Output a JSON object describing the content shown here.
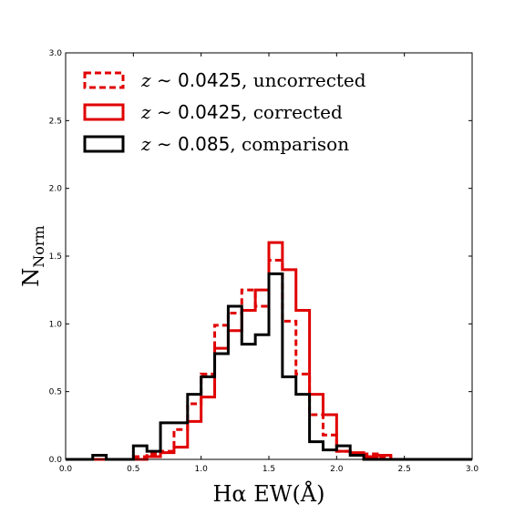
{
  "chart_data": {
    "type": "histogram",
    "xlabel": "Hα EW(Å)",
    "ylabel": "N",
    "ylabel_sub": "Norm",
    "xlim": [
      0.0,
      3.0
    ],
    "ylim": [
      0.0,
      3.0
    ],
    "xticks": [
      "0.0",
      "0.5",
      "1.0",
      "1.5",
      "2.0",
      "2.5",
      "3.0"
    ],
    "yticks": [
      "0.0",
      "0.5",
      "1.0",
      "1.5",
      "2.0",
      "2.5",
      "3.0"
    ],
    "grid": false,
    "legend_position": "top-left",
    "bin_edges": [
      0.0,
      0.1,
      0.2,
      0.3,
      0.4,
      0.5,
      0.6,
      0.7,
      0.8,
      0.9,
      1.0,
      1.1,
      1.2,
      1.3,
      1.4,
      1.5,
      1.6,
      1.7,
      1.8,
      1.9,
      2.0,
      2.1,
      2.2,
      2.3,
      2.4,
      2.5,
      2.6,
      2.7,
      2.8,
      2.9,
      3.0
    ],
    "series": [
      {
        "name_prefix": "z",
        "name_sim": " ∼ ",
        "name_value": "0.0425",
        "name_suffix": ", uncorrected",
        "color": "#e00000",
        "style": "dashed",
        "values": [
          0.0,
          0.0,
          0.0,
          0.0,
          0.0,
          0.02,
          0.04,
          0.06,
          0.22,
          0.41,
          0.63,
          0.99,
          1.08,
          1.25,
          1.13,
          1.47,
          1.02,
          0.63,
          0.33,
          0.18,
          0.06,
          0.04,
          0.04,
          0.02,
          0.0,
          0.0,
          0.0,
          0.0,
          0.0,
          0.0
        ]
      },
      {
        "name_prefix": "z",
        "name_sim": " ∼ ",
        "name_value": "0.0425",
        "name_suffix": ", corrected",
        "color": "#e00000",
        "style": "solid",
        "values": [
          0.0,
          0.0,
          0.0,
          0.0,
          0.0,
          0.0,
          0.02,
          0.05,
          0.09,
          0.28,
          0.46,
          0.82,
          0.95,
          1.1,
          1.25,
          1.6,
          1.4,
          1.1,
          0.48,
          0.33,
          0.06,
          0.05,
          0.02,
          0.03,
          0.0,
          0.0,
          0.0,
          0.0,
          0.0,
          0.0
        ]
      },
      {
        "name_prefix": "z",
        "name_sim": " ∼ ",
        "name_value": "0.085",
        "name_suffix": ", comparison",
        "color": "#000000",
        "style": "solid",
        "values": [
          0.0,
          0.0,
          0.03,
          0.0,
          0.0,
          0.1,
          0.06,
          0.27,
          0.27,
          0.48,
          0.61,
          0.78,
          1.13,
          0.85,
          0.92,
          1.37,
          0.61,
          0.48,
          0.13,
          0.07,
          0.1,
          0.03,
          0.0,
          0.0,
          0.0,
          0.0,
          0.0,
          0.0,
          0.0,
          0.0
        ]
      }
    ]
  }
}
